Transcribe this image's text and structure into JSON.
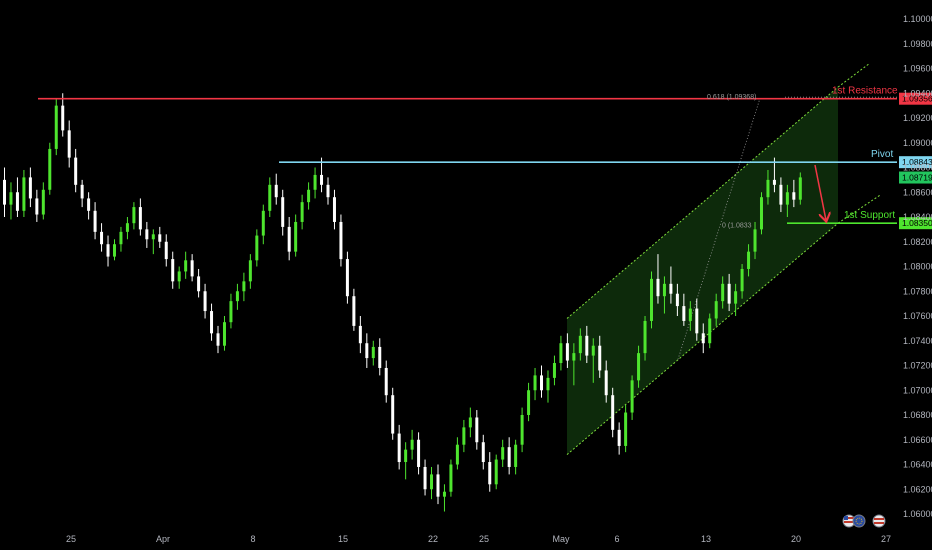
{
  "chart_data": {
    "type": "candlestick",
    "symbol": "EURUSD",
    "y_axis": {
      "min": 1.06,
      "max": 1.1,
      "ticks": [
        "1.10000",
        "1.09800",
        "1.09600",
        "1.09400",
        "1.09200",
        "1.09000",
        "1.08800",
        "1.08600",
        "1.08400",
        "1.08200",
        "1.08000",
        "1.07800",
        "1.07600",
        "1.07400",
        "1.07200",
        "1.07000",
        "1.06800",
        "1.06600",
        "1.06400",
        "1.06200",
        "1.06000"
      ]
    },
    "x_axis": {
      "ticks": [
        "25",
        "Apr",
        "8",
        "15",
        "22",
        "25",
        "May",
        "6",
        "13",
        "20",
        "27"
      ]
    },
    "levels": [
      {
        "name": "1st Resistance",
        "price": 1.09356,
        "tag": "1.09356",
        "color": "#f23645"
      },
      {
        "name": "Pivot",
        "price": 1.08843,
        "tag": "1.08843",
        "color": "#7fd6f0"
      },
      {
        "name": "1st Support",
        "price": 1.0835,
        "tag": "1.08350",
        "color": "#4ee52e"
      }
    ],
    "last_price": {
      "price": 1.08719,
      "tag": "1.08719",
      "color": "#22c55e"
    },
    "fib_labels": [
      {
        "text": "0.618 (1.09368)",
        "price": 1.09368
      },
      {
        "text": "0 (1.0833",
        "price": 1.0833
      }
    ],
    "channel": {
      "lower_start": {
        "date": "Apr 29",
        "price": 1.0648
      },
      "lower_end": {
        "date": "May 23",
        "price": 1.0835
      },
      "width": 0.011
    },
    "projection_arrow": {
      "from_price": 1.0882,
      "to_price": 1.0835
    },
    "colors": {
      "background": "#000000",
      "candle_up": "#4ee52e",
      "candle_down": "#ffffff",
      "channel_fill": "#0d2a0b",
      "channel_line": "#7ddc3a"
    },
    "candles": [
      [
        1.087,
        1.088,
        1.084,
        1.085
      ],
      [
        1.085,
        1.0868,
        1.0838,
        1.086
      ],
      [
        1.086,
        1.0872,
        1.084,
        1.0845
      ],
      [
        1.0845,
        1.0878,
        1.084,
        1.0872
      ],
      [
        1.0872,
        1.088,
        1.0848,
        1.0855
      ],
      [
        1.0855,
        1.0862,
        1.0836,
        1.0842
      ],
      [
        1.0842,
        1.0868,
        1.0838,
        1.0862
      ],
      [
        1.0862,
        1.09,
        1.0858,
        1.0895
      ],
      [
        1.0895,
        1.0935,
        1.089,
        1.093
      ],
      [
        1.093,
        1.094,
        1.0905,
        1.091
      ],
      [
        1.091,
        1.0918,
        1.088,
        1.0888
      ],
      [
        1.0888,
        1.0895,
        1.086,
        1.0866
      ],
      [
        1.0866,
        1.087,
        1.0848,
        1.0855
      ],
      [
        1.0855,
        1.086,
        1.0838,
        1.0845
      ],
      [
        1.0845,
        1.0852,
        1.0822,
        1.0828
      ],
      [
        1.0828,
        1.0835,
        1.0812,
        1.0818
      ],
      [
        1.0818,
        1.0825,
        1.08,
        1.0808
      ],
      [
        1.0808,
        1.0822,
        1.0805,
        1.0818
      ],
      [
        1.0818,
        1.0832,
        1.0812,
        1.0828
      ],
      [
        1.0828,
        1.084,
        1.0822,
        1.0835
      ],
      [
        1.0835,
        1.0852,
        1.083,
        1.0848
      ],
      [
        1.0848,
        1.0855,
        1.0825,
        1.083
      ],
      [
        1.083,
        1.0836,
        1.0815,
        1.0822
      ],
      [
        1.0822,
        1.083,
        1.081,
        1.0826
      ],
      [
        1.0826,
        1.0832,
        1.0815,
        1.082
      ],
      [
        1.082,
        1.0826,
        1.08,
        1.0806
      ],
      [
        1.0806,
        1.0812,
        1.0782,
        1.0788
      ],
      [
        1.0788,
        1.08,
        1.0782,
        1.0796
      ],
      [
        1.0796,
        1.0812,
        1.079,
        1.0805
      ],
      [
        1.0805,
        1.081,
        1.0788,
        1.0792
      ],
      [
        1.0792,
        1.0798,
        1.0775,
        1.078
      ],
      [
        1.078,
        1.0786,
        1.0758,
        1.0764
      ],
      [
        1.0764,
        1.077,
        1.074,
        1.0746
      ],
      [
        1.0746,
        1.0752,
        1.073,
        1.0736
      ],
      [
        1.0736,
        1.076,
        1.0732,
        1.0755
      ],
      [
        1.0755,
        1.0778,
        1.075,
        1.0772
      ],
      [
        1.0772,
        1.0786,
        1.0765,
        1.078
      ],
      [
        1.078,
        1.0795,
        1.0772,
        1.0788
      ],
      [
        1.0788,
        1.081,
        1.0782,
        1.0805
      ],
      [
        1.0805,
        1.083,
        1.08,
        1.0825
      ],
      [
        1.0825,
        1.085,
        1.0818,
        1.0845
      ],
      [
        1.0845,
        1.0872,
        1.084,
        1.0866
      ],
      [
        1.0866,
        1.0875,
        1.085,
        1.0856
      ],
      [
        1.0856,
        1.0862,
        1.0825,
        1.0832
      ],
      [
        1.0832,
        1.084,
        1.0805,
        1.0812
      ],
      [
        1.0812,
        1.0842,
        1.0808,
        1.0836
      ],
      [
        1.0836,
        1.0858,
        1.083,
        1.0852
      ],
      [
        1.0852,
        1.0868,
        1.0846,
        1.0862
      ],
      [
        1.0862,
        1.088,
        1.0855,
        1.0874
      ],
      [
        1.0874,
        1.0888,
        1.086,
        1.0866
      ],
      [
        1.0866,
        1.0872,
        1.085,
        1.0856
      ],
      [
        1.0856,
        1.0862,
        1.083,
        1.0836
      ],
      [
        1.0836,
        1.0842,
        1.08,
        1.0806
      ],
      [
        1.0806,
        1.0812,
        1.077,
        1.0776
      ],
      [
        1.0776,
        1.0782,
        1.0748,
        1.0752
      ],
      [
        1.0752,
        1.076,
        1.073,
        1.0738
      ],
      [
        1.0738,
        1.0746,
        1.0718,
        1.0726
      ],
      [
        1.0726,
        1.074,
        1.072,
        1.0735
      ],
      [
        1.0735,
        1.0742,
        1.0712,
        1.0718
      ],
      [
        1.0718,
        1.0724,
        1.069,
        1.0696
      ],
      [
        1.0696,
        1.0702,
        1.066,
        1.0665
      ],
      [
        1.0665,
        1.0672,
        1.0636,
        1.0642
      ],
      [
        1.0642,
        1.0658,
        1.0628,
        1.0652
      ],
      [
        1.0652,
        1.0668,
        1.0644,
        1.066
      ],
      [
        1.066,
        1.0666,
        1.0632,
        1.0638
      ],
      [
        1.0638,
        1.0644,
        1.0615,
        1.062
      ],
      [
        1.062,
        1.0638,
        1.0612,
        1.0632
      ],
      [
        1.0632,
        1.064,
        1.0608,
        1.0614
      ],
      [
        1.0614,
        1.0624,
        1.0602,
        1.0618
      ],
      [
        1.0618,
        1.0644,
        1.0614,
        1.064
      ],
      [
        1.064,
        1.0662,
        1.0636,
        1.0656
      ],
      [
        1.0656,
        1.0676,
        1.065,
        1.067
      ],
      [
        1.067,
        1.0686,
        1.0662,
        1.0678
      ],
      [
        1.0678,
        1.0684,
        1.0652,
        1.0658
      ],
      [
        1.0658,
        1.0664,
        1.0636,
        1.0642
      ],
      [
        1.0642,
        1.065,
        1.0618,
        1.0624
      ],
      [
        1.0624,
        1.0648,
        1.062,
        1.0644
      ],
      [
        1.0644,
        1.066,
        1.0638,
        1.0654
      ],
      [
        1.0654,
        1.0662,
        1.0632,
        1.0638
      ],
      [
        1.0638,
        1.066,
        1.0632,
        1.0656
      ],
      [
        1.0656,
        1.0686,
        1.065,
        1.068
      ],
      [
        1.068,
        1.0706,
        1.0675,
        1.07
      ],
      [
        1.07,
        1.0718,
        1.0692,
        1.0712
      ],
      [
        1.0712,
        1.072,
        1.0694,
        1.07
      ],
      [
        1.07,
        1.0716,
        1.069,
        1.071
      ],
      [
        1.071,
        1.0728,
        1.0704,
        1.0722
      ],
      [
        1.0722,
        1.0744,
        1.0716,
        1.0738
      ],
      [
        1.0738,
        1.0746,
        1.0718,
        1.0724
      ],
      [
        1.0724,
        1.0738,
        1.0704,
        1.073
      ],
      [
        1.073,
        1.075,
        1.0724,
        1.0744
      ],
      [
        1.0744,
        1.0752,
        1.0722,
        1.0728
      ],
      [
        1.0728,
        1.0742,
        1.0706,
        1.0736
      ],
      [
        1.0736,
        1.0744,
        1.071,
        1.0716
      ],
      [
        1.0716,
        1.0724,
        1.069,
        1.0696
      ],
      [
        1.0696,
        1.0702,
        1.0662,
        1.0668
      ],
      [
        1.0668,
        1.0674,
        1.0648,
        1.0655
      ],
      [
        1.0655,
        1.0688,
        1.065,
        1.0682
      ],
      [
        1.0682,
        1.0712,
        1.0676,
        1.0708
      ],
      [
        1.0708,
        1.0736,
        1.0702,
        1.073
      ],
      [
        1.073,
        1.076,
        1.0724,
        1.0756
      ],
      [
        1.0756,
        1.0796,
        1.075,
        1.079
      ],
      [
        1.079,
        1.081,
        1.077,
        1.0776
      ],
      [
        1.0776,
        1.0792,
        1.0762,
        1.0786
      ],
      [
        1.0786,
        1.08,
        1.077,
        1.0778
      ],
      [
        1.0778,
        1.0786,
        1.076,
        1.0768
      ],
      [
        1.0768,
        1.0778,
        1.0752,
        1.0756
      ],
      [
        1.0756,
        1.0772,
        1.0748,
        1.0766
      ],
      [
        1.0766,
        1.0774,
        1.074,
        1.0746
      ],
      [
        1.0746,
        1.0754,
        1.073,
        1.0738
      ],
      [
        1.0738,
        1.0762,
        1.0734,
        1.0758
      ],
      [
        1.0758,
        1.0778,
        1.0752,
        1.0772
      ],
      [
        1.0772,
        1.0792,
        1.0766,
        1.0786
      ],
      [
        1.0786,
        1.0794,
        1.0764,
        1.077
      ],
      [
        1.077,
        1.0786,
        1.076,
        1.078
      ],
      [
        1.078,
        1.0802,
        1.0774,
        1.0798
      ],
      [
        1.0798,
        1.0818,
        1.0792,
        1.0812
      ],
      [
        1.0812,
        1.0836,
        1.0806,
        1.083
      ],
      [
        1.083,
        1.086,
        1.0826,
        1.0856
      ],
      [
        1.0856,
        1.0878,
        1.085,
        1.087
      ],
      [
        1.087,
        1.0888,
        1.086,
        1.0866
      ],
      [
        1.0866,
        1.0872,
        1.0844,
        1.085
      ],
      [
        1.085,
        1.0866,
        1.084,
        1.086
      ],
      [
        1.086,
        1.087,
        1.0848,
        1.0854
      ],
      [
        1.0854,
        1.0876,
        1.085,
        1.0872
      ]
    ]
  }
}
